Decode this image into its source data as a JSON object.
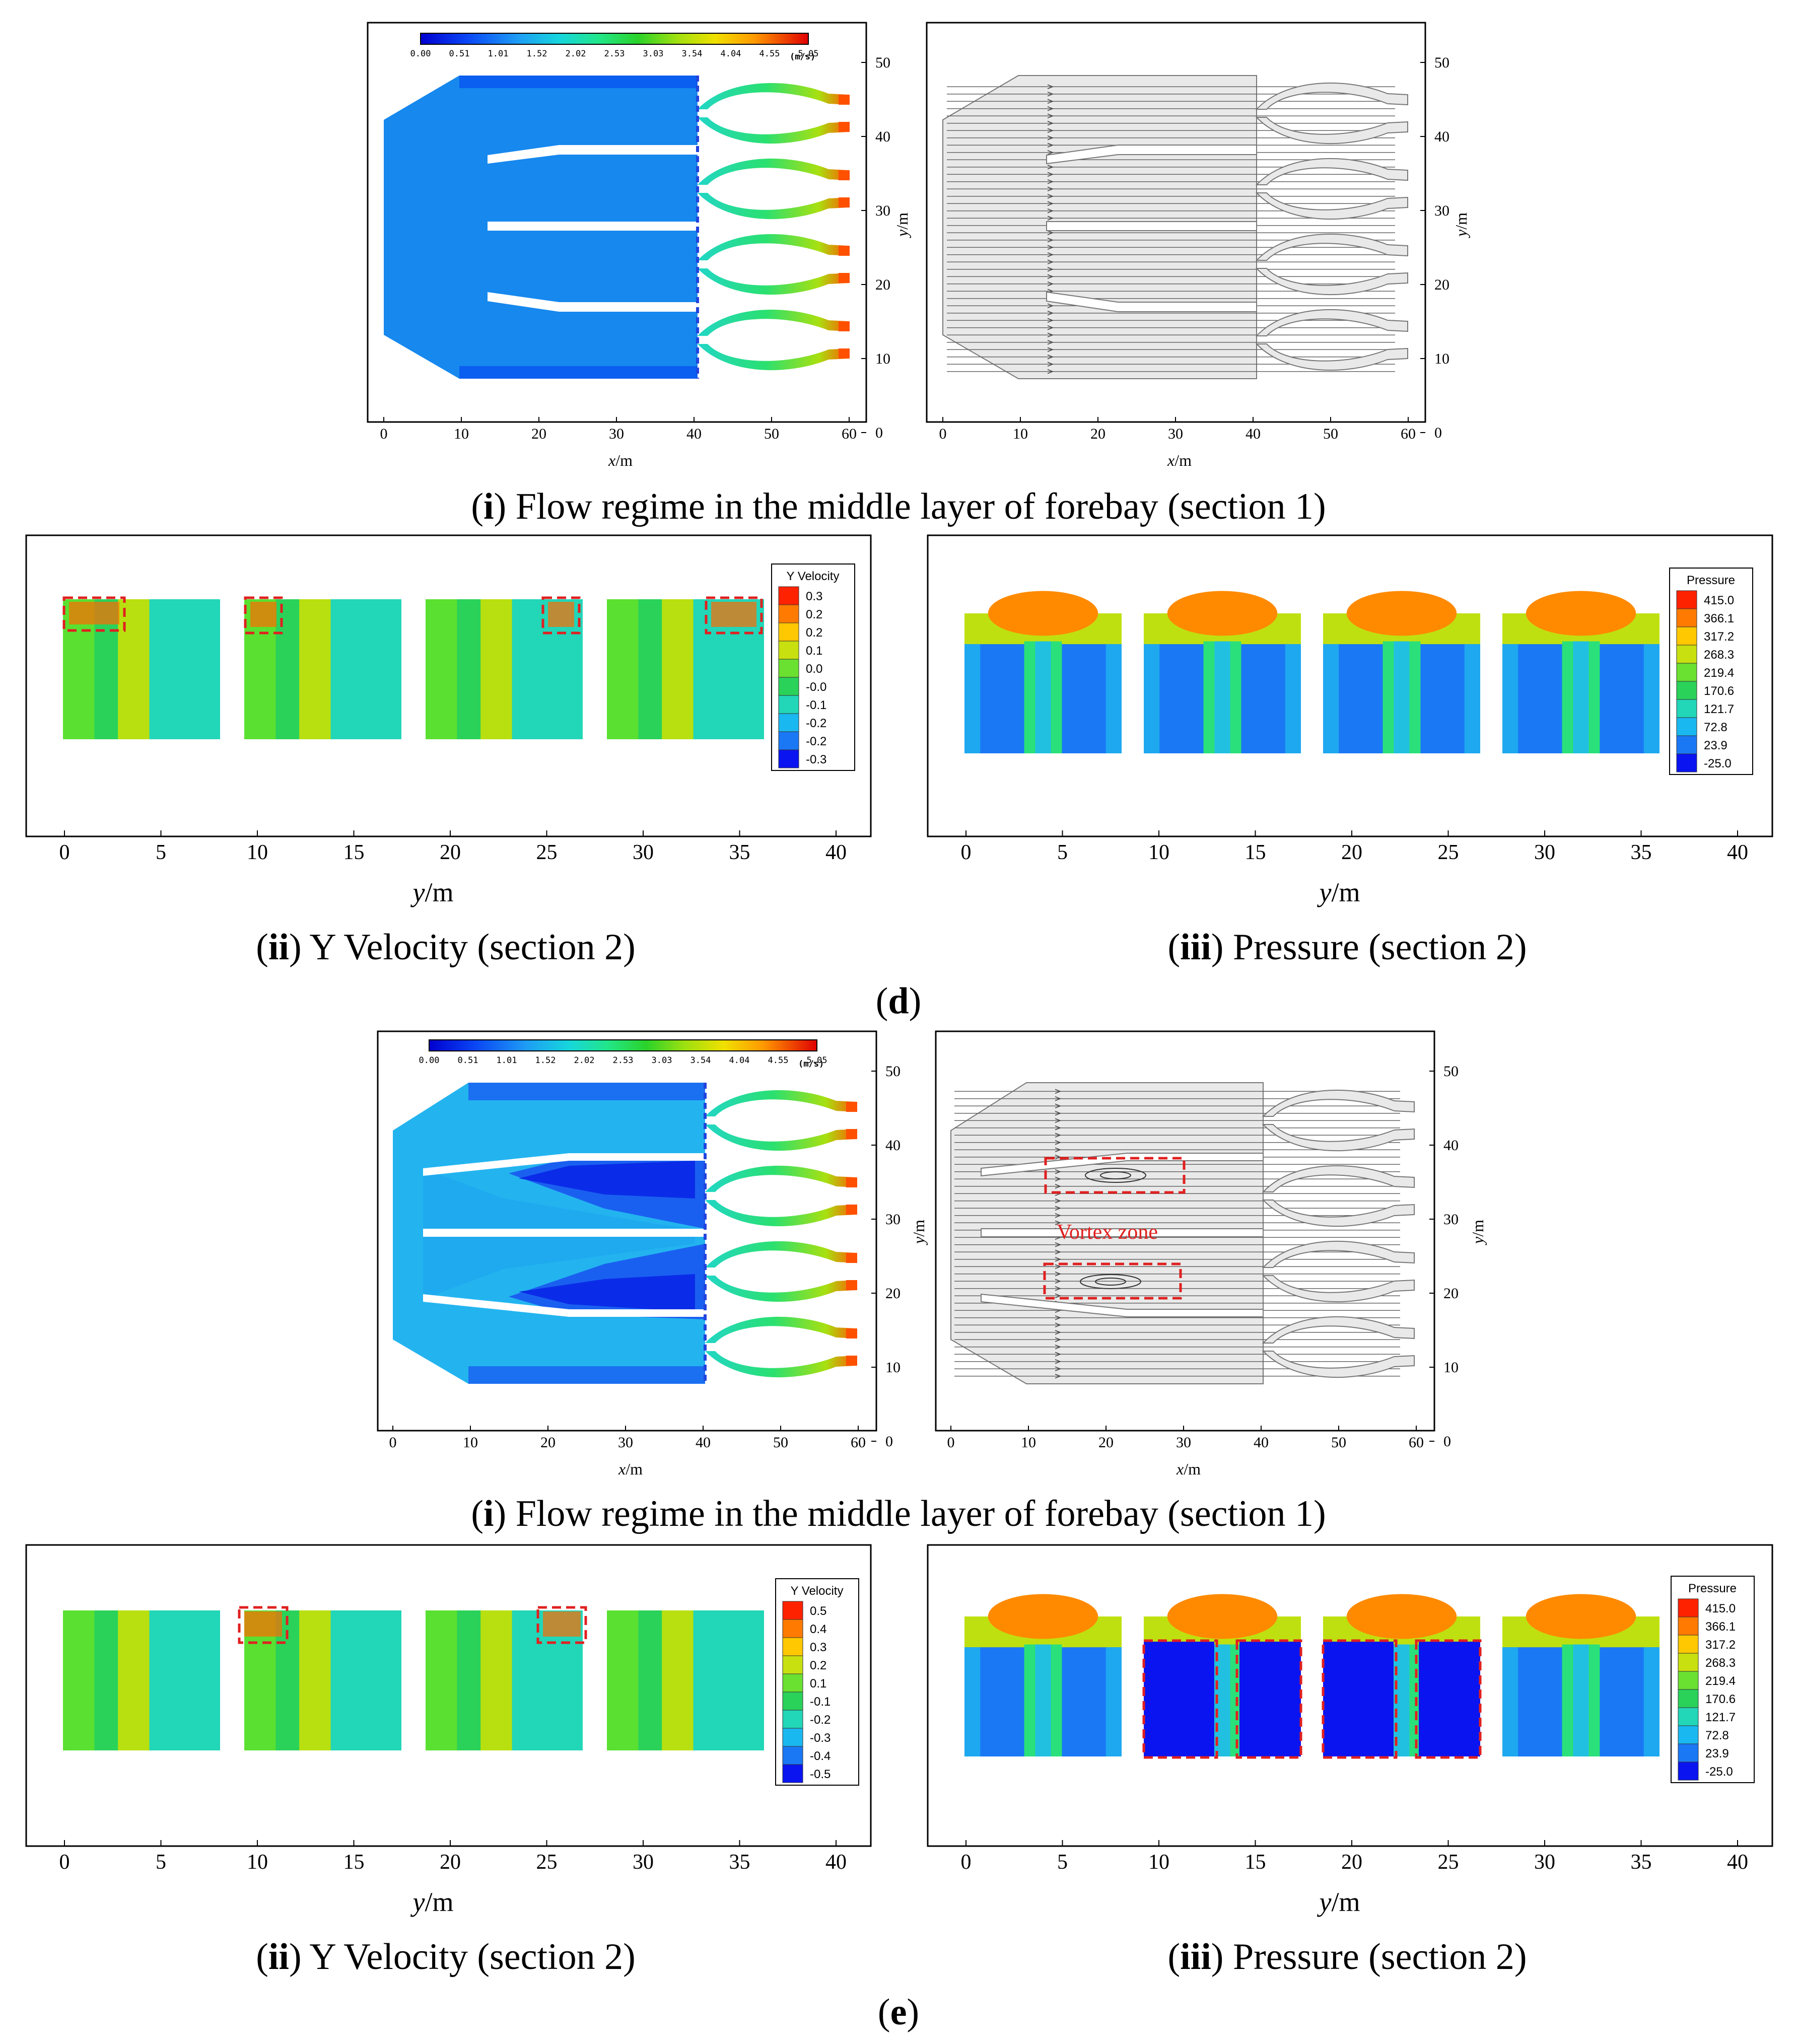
{
  "colors": {
    "jet": [
      "#0000d0",
      "#0a3cf0",
      "#1a78f5",
      "#1ea6f0",
      "#16d2dc",
      "#19e6b4",
      "#2ae66a",
      "#28d226",
      "#8ade14",
      "#d6e60c",
      "#ffd200",
      "#ff9a00",
      "#ff5a00",
      "#e60000"
    ],
    "vortex_box": "#e02020",
    "streamline": "#555555",
    "gray_fill": "#e9e9e9"
  },
  "panel_d": {
    "flow": {
      "caption_bold": "i",
      "caption_text": "Flow regime in the middle layer of forebay (section 1)",
      "colorbar_ticks": [
        "0.00",
        "0.51",
        "1.01",
        "1.52",
        "2.02",
        "2.53",
        "3.03",
        "3.54",
        "4.04",
        "4.55",
        "5.05"
      ],
      "colorbar_unit": "(m/s)",
      "x_ticks": [
        "0",
        "10",
        "20",
        "30",
        "40",
        "50",
        "60"
      ],
      "y_ticks": [
        "50",
        "40",
        "30",
        "20",
        "10",
        "0"
      ],
      "xlabel_italic": "x",
      "xlabel_unit": "/m",
      "ylabel_italic": "y",
      "ylabel_unit": "/m"
    },
    "yvel": {
      "caption_bold": "ii",
      "caption_text": "Y Velocity (section 2)",
      "legend_title": "Y Velocity",
      "legend_values": [
        "0.3",
        "0.2",
        "0.2",
        "0.1",
        "0.0",
        "-0.0",
        "-0.1",
        "-0.2",
        "-0.2",
        "-0.3"
      ],
      "x_ticks": [
        "0",
        "5",
        "10",
        "15",
        "20",
        "25",
        "30",
        "35",
        "40"
      ],
      "xlabel_italic": "y",
      "xlabel_unit": "/m"
    },
    "pressure": {
      "caption_bold": "iii",
      "caption_text": "Pressure (section 2)",
      "legend_title": "Pressure",
      "legend_values": [
        "415.0",
        "366.1",
        "317.2",
        "268.3",
        "219.4",
        "170.6",
        "121.7",
        "72.8",
        "23.9",
        "-25.0"
      ],
      "x_ticks": [
        "0",
        "5",
        "10",
        "15",
        "20",
        "25",
        "30",
        "35",
        "40"
      ],
      "xlabel_italic": "y",
      "xlabel_unit": "/m"
    },
    "label": "d"
  },
  "panel_e": {
    "flow": {
      "caption_bold": "i",
      "caption_text": "Flow regime in the middle layer of forebay (section 1)",
      "colorbar_ticks": [
        "0.00",
        "0.51",
        "1.01",
        "1.52",
        "2.02",
        "2.53",
        "3.03",
        "3.54",
        "4.04",
        "4.55",
        "5.05"
      ],
      "colorbar_unit": "(m/s)",
      "x_ticks": [
        "0",
        "10",
        "20",
        "30",
        "40",
        "50",
        "60"
      ],
      "y_ticks": [
        "50",
        "40",
        "30",
        "20",
        "10",
        "0"
      ],
      "xlabel_italic": "x",
      "xlabel_unit": "/m",
      "ylabel_italic": "y",
      "ylabel_unit": "/m",
      "vortex_label": "Vortex zone"
    },
    "yvel": {
      "caption_bold": "ii",
      "caption_text": "Y Velocity (section 2)",
      "legend_title": "Y Velocity",
      "legend_values": [
        "0.5",
        "0.4",
        "0.3",
        "0.2",
        "0.1",
        "-0.1",
        "-0.2",
        "-0.3",
        "-0.4",
        "-0.5"
      ],
      "x_ticks": [
        "0",
        "5",
        "10",
        "15",
        "20",
        "25",
        "30",
        "35",
        "40"
      ],
      "xlabel_italic": "y",
      "xlabel_unit": "/m"
    },
    "pressure": {
      "caption_bold": "iii",
      "caption_text": "Pressure (section 2)",
      "legend_title": "Pressure",
      "legend_values": [
        "415.0",
        "366.1",
        "317.2",
        "268.3",
        "219.4",
        "170.6",
        "121.7",
        "72.8",
        "23.9",
        "-25.0"
      ],
      "x_ticks": [
        "0",
        "5",
        "10",
        "15",
        "20",
        "25",
        "30",
        "35",
        "40"
      ],
      "xlabel_italic": "y",
      "xlabel_unit": "/m"
    },
    "label": "e"
  }
}
